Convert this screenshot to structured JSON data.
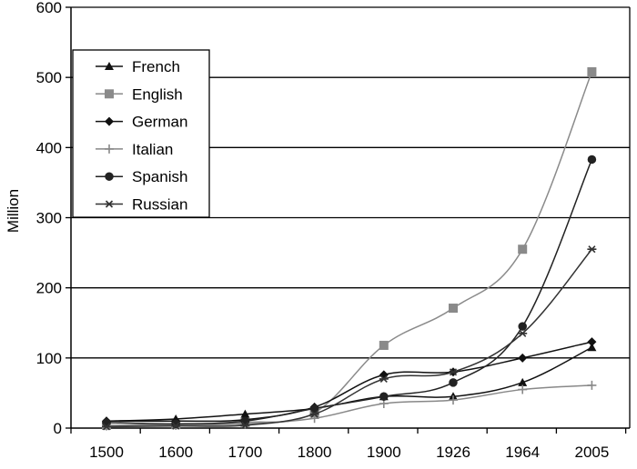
{
  "chart_data": {
    "type": "line",
    "title": "",
    "xlabel": "",
    "ylabel": "Million",
    "categories": [
      "1500",
      "1600",
      "1700",
      "1800",
      "1900",
      "1926",
      "1964",
      "2005"
    ],
    "ylim": [
      0,
      600
    ],
    "yticks": [
      "0",
      "100",
      "200",
      "300",
      "400",
      "500",
      "600"
    ],
    "grid": "horizontal",
    "legend_position": "top-left",
    "series": [
      {
        "name": "French",
        "marker": "triangle",
        "color": "#111111",
        "values": [
          10,
          13,
          20,
          28,
          45,
          45,
          65,
          115
        ]
      },
      {
        "name": "English",
        "marker": "square",
        "color": "#8a8a8a",
        "values": [
          4,
          5,
          8,
          22,
          118,
          171,
          255,
          508
        ]
      },
      {
        "name": "German",
        "marker": "diamond",
        "color": "#111111",
        "values": [
          10,
          10,
          12,
          30,
          76,
          80,
          100,
          123
        ]
      },
      {
        "name": "Italian",
        "marker": "plus",
        "color": "#888888",
        "values": [
          3,
          4,
          6,
          14,
          35,
          40,
          55,
          61
        ]
      },
      {
        "name": "Spanish",
        "marker": "circle",
        "color": "#222222",
        "values": [
          8,
          6,
          10,
          28,
          45,
          65,
          145,
          383
        ]
      },
      {
        "name": "Russian",
        "marker": "star",
        "color": "#333333",
        "values": [
          2,
          3,
          4,
          20,
          70,
          80,
          135,
          255
        ]
      }
    ]
  }
}
